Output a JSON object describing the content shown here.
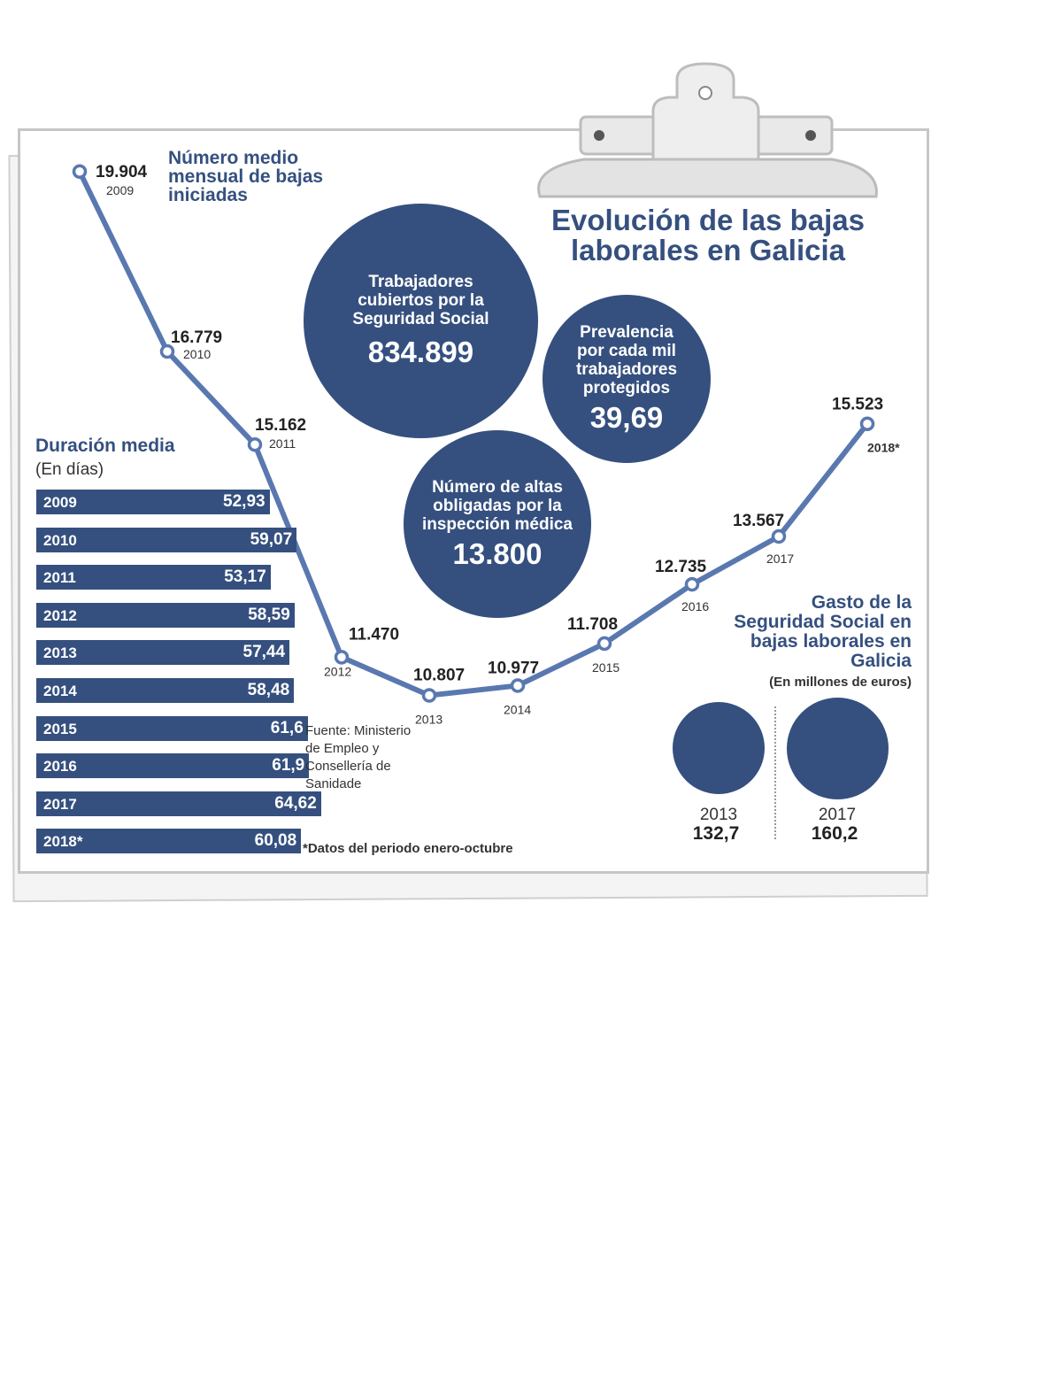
{
  "title": "Evolución de las bajas laborales en Galicia",
  "colors": {
    "accent": "#35507f",
    "line": "#5a78b0"
  },
  "chart_data": [
    {
      "type": "line",
      "title": "Número medio mensual de bajas iniciadas",
      "x": [
        "2009",
        "2010",
        "2011",
        "2012",
        "2013",
        "2014",
        "2015",
        "2016",
        "2017",
        "2018*"
      ],
      "series": [
        {
          "values": [
            19904,
            16779,
            15162,
            11470,
            10807,
            10977,
            11708,
            12735,
            13567,
            15523
          ]
        }
      ],
      "value_labels": [
        "19.904",
        "16.779",
        "15.162",
        "11.470",
        "10.807",
        "10.977",
        "11.708",
        "12.735",
        "13.567",
        "15.523"
      ],
      "ylim": [
        10000,
        20500
      ]
    },
    {
      "type": "bar",
      "title": "Duración media",
      "subtitle": "(En días)",
      "categories": [
        "2009",
        "2010",
        "2011",
        "2012",
        "2013",
        "2014",
        "2015",
        "2016",
        "2017",
        "2018*"
      ],
      "values": [
        52.93,
        59.07,
        53.17,
        58.59,
        57.44,
        58.48,
        61.6,
        61.9,
        64.62,
        60.08
      ],
      "value_labels": [
        "52,93",
        "59,07",
        "53,17",
        "58,59",
        "57,44",
        "58,48",
        "61,6",
        "61,9",
        "64,62",
        "60,08"
      ]
    },
    {
      "type": "bar",
      "title": "Gasto de la Seguridad Social en bajas laborales en Galicia",
      "subtitle": "(En millones de euros)",
      "categories": [
        "2013",
        "2017"
      ],
      "values": [
        132.7,
        160.2
      ],
      "value_labels": [
        "132,7",
        "160,2"
      ]
    }
  ],
  "bubbles": [
    {
      "label": "Trabajadores cubiertos por la Seguridad Social",
      "value": "834.899"
    },
    {
      "label": "Prevalencia por cada mil trabajadores protegidos",
      "value": "39,69"
    },
    {
      "label": "Número de altas obligadas por la inspección médica",
      "value": "13.800"
    }
  ],
  "source": "Fuente: Ministerio de Empleo y Consellería de Sanidade",
  "note": "*Datos del periodo enero-octubre"
}
